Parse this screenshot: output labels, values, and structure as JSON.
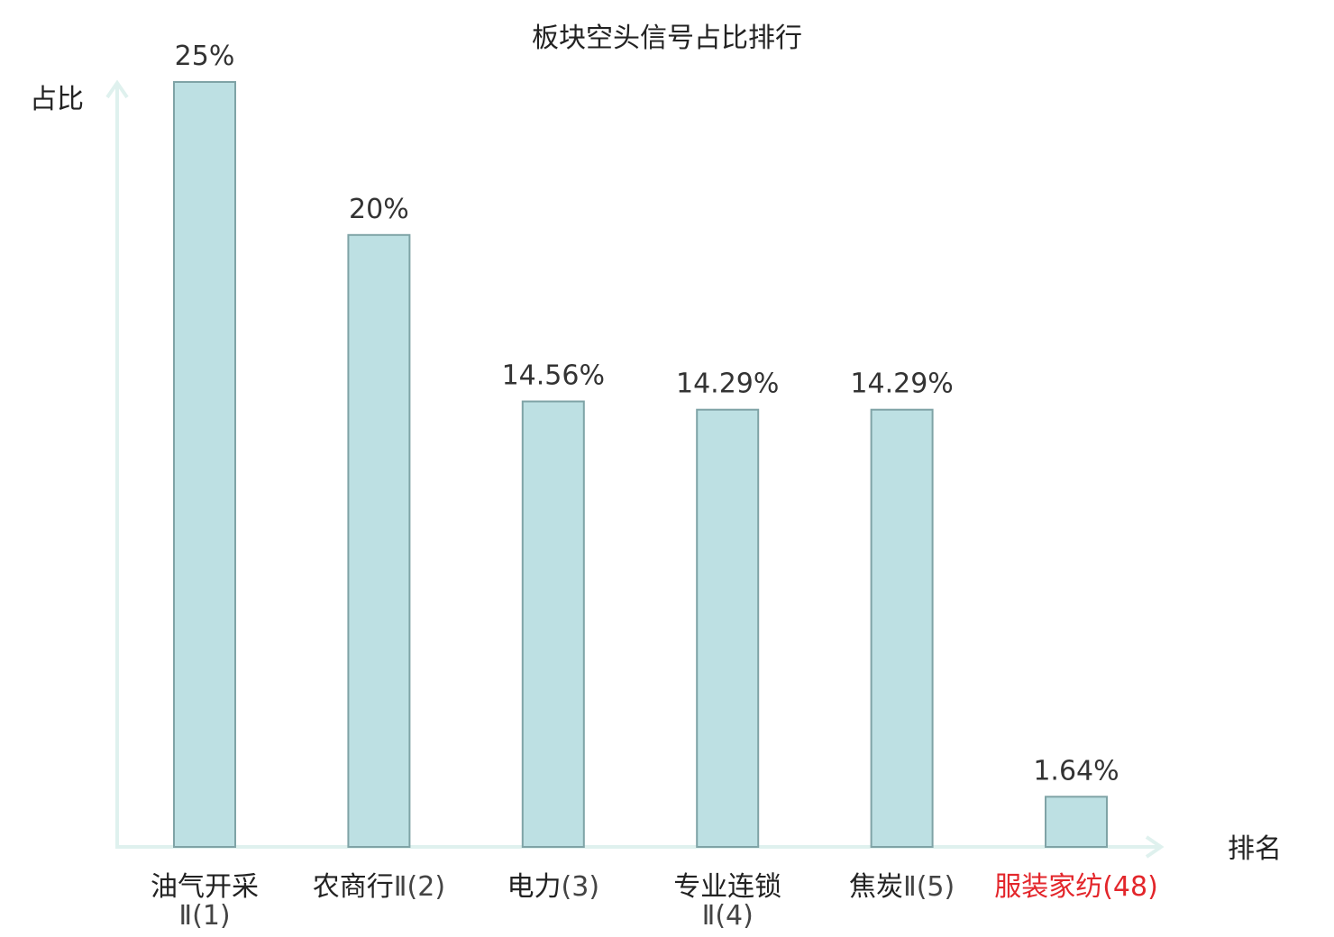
{
  "chart_data": {
    "type": "bar",
    "title": "板块空头信号占比排行",
    "ylabel": "占比",
    "xlabel": "排名",
    "categories": [
      "油气开采Ⅱ(1)",
      "农商行Ⅱ(2)",
      "电力(3)",
      "专业连锁Ⅱ(4)",
      "焦炭Ⅱ(5)",
      "服装家纺(48)"
    ],
    "category_parts": [
      {
        "name": "油气开采",
        "rank": "Ⅱ(1)"
      },
      {
        "name": "农商行",
        "rank": "Ⅱ(2)"
      },
      {
        "name": "电力",
        "rank": "(3)"
      },
      {
        "name": "专业连锁",
        "rank": "Ⅱ(4)"
      },
      {
        "name": "焦炭",
        "rank": "Ⅱ(5)"
      },
      {
        "name": "服装家纺",
        "rank": "(48)"
      }
    ],
    "values": [
      25,
      20,
      14.56,
      14.29,
      14.29,
      1.64
    ],
    "value_labels": [
      "25%",
      "20%",
      "14.56%",
      "14.29%",
      "14.29%",
      "1.64%"
    ],
    "highlight_index": 5,
    "ylim": [
      0,
      25
    ],
    "grid": false,
    "legend": "none",
    "colors": {
      "bar_fill": "#bde0e3",
      "bar_stroke": "#7fa3a6",
      "axis": "#dff1ee",
      "highlight_text": "#e3262b",
      "text": "#222222"
    }
  }
}
